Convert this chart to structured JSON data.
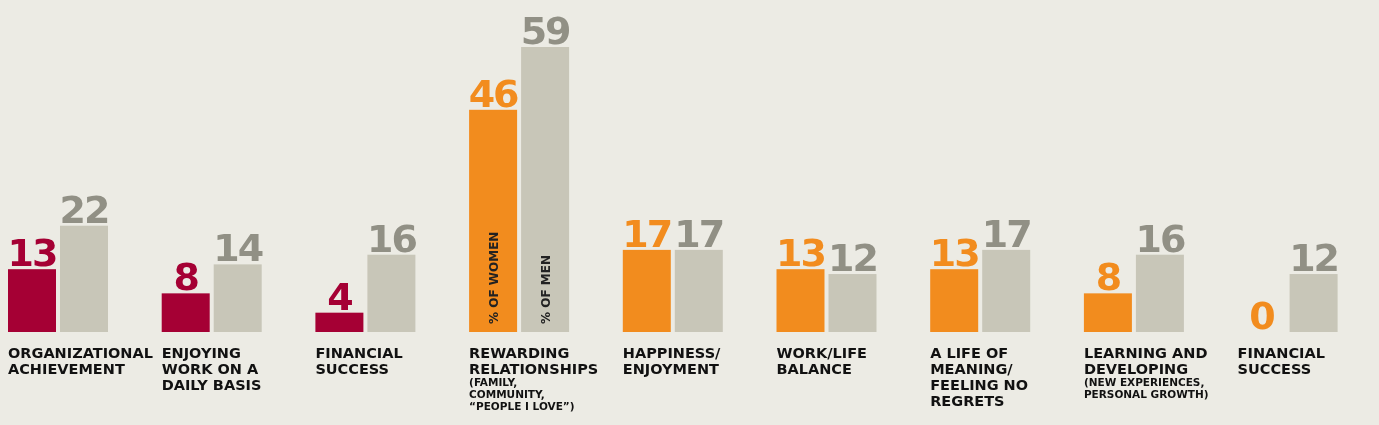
{
  "chart_data": {
    "type": "bar",
    "categories": [
      "ORGANIZATIONAL\nACHIEVEMENT",
      "ENJOYING\nWORK ON A\nDAILY BASIS",
      "FINANCIAL\nSUCCESS",
      "REWARDING\nRELATIONSHIPS\n(FAMILY,\nCOMMUNITY,\n“PEOPLE I LOVE”)",
      "HAPPINESS/\nENJOYMENT",
      "WORK/LIFE\nBALANCE",
      "A LIFE OF\nMEANING/\nFEELING NO\nREGRETS",
      "LEARNING AND\nDEVELOPING\n(NEW EXPERIENCES,\nPERSONAL GROWTH)",
      "FINANCIAL\nSUCCESS"
    ],
    "series": [
      {
        "name": "% OF WOMEN",
        "colors": [
          "#a50034",
          "#a50034",
          "#a50034",
          "#f28c1e",
          "#f28c1e",
          "#f28c1e",
          "#f28c1e",
          "#f28c1e",
          "#f28c1e"
        ],
        "values": [
          13,
          8,
          4,
          46,
          17,
          13,
          13,
          8,
          0
        ]
      },
      {
        "name": "% OF MEN",
        "color": "#c8c6b8",
        "values": [
          22,
          14,
          16,
          59,
          17,
          12,
          17,
          16,
          12
        ]
      }
    ],
    "data_labels": true
  }
}
